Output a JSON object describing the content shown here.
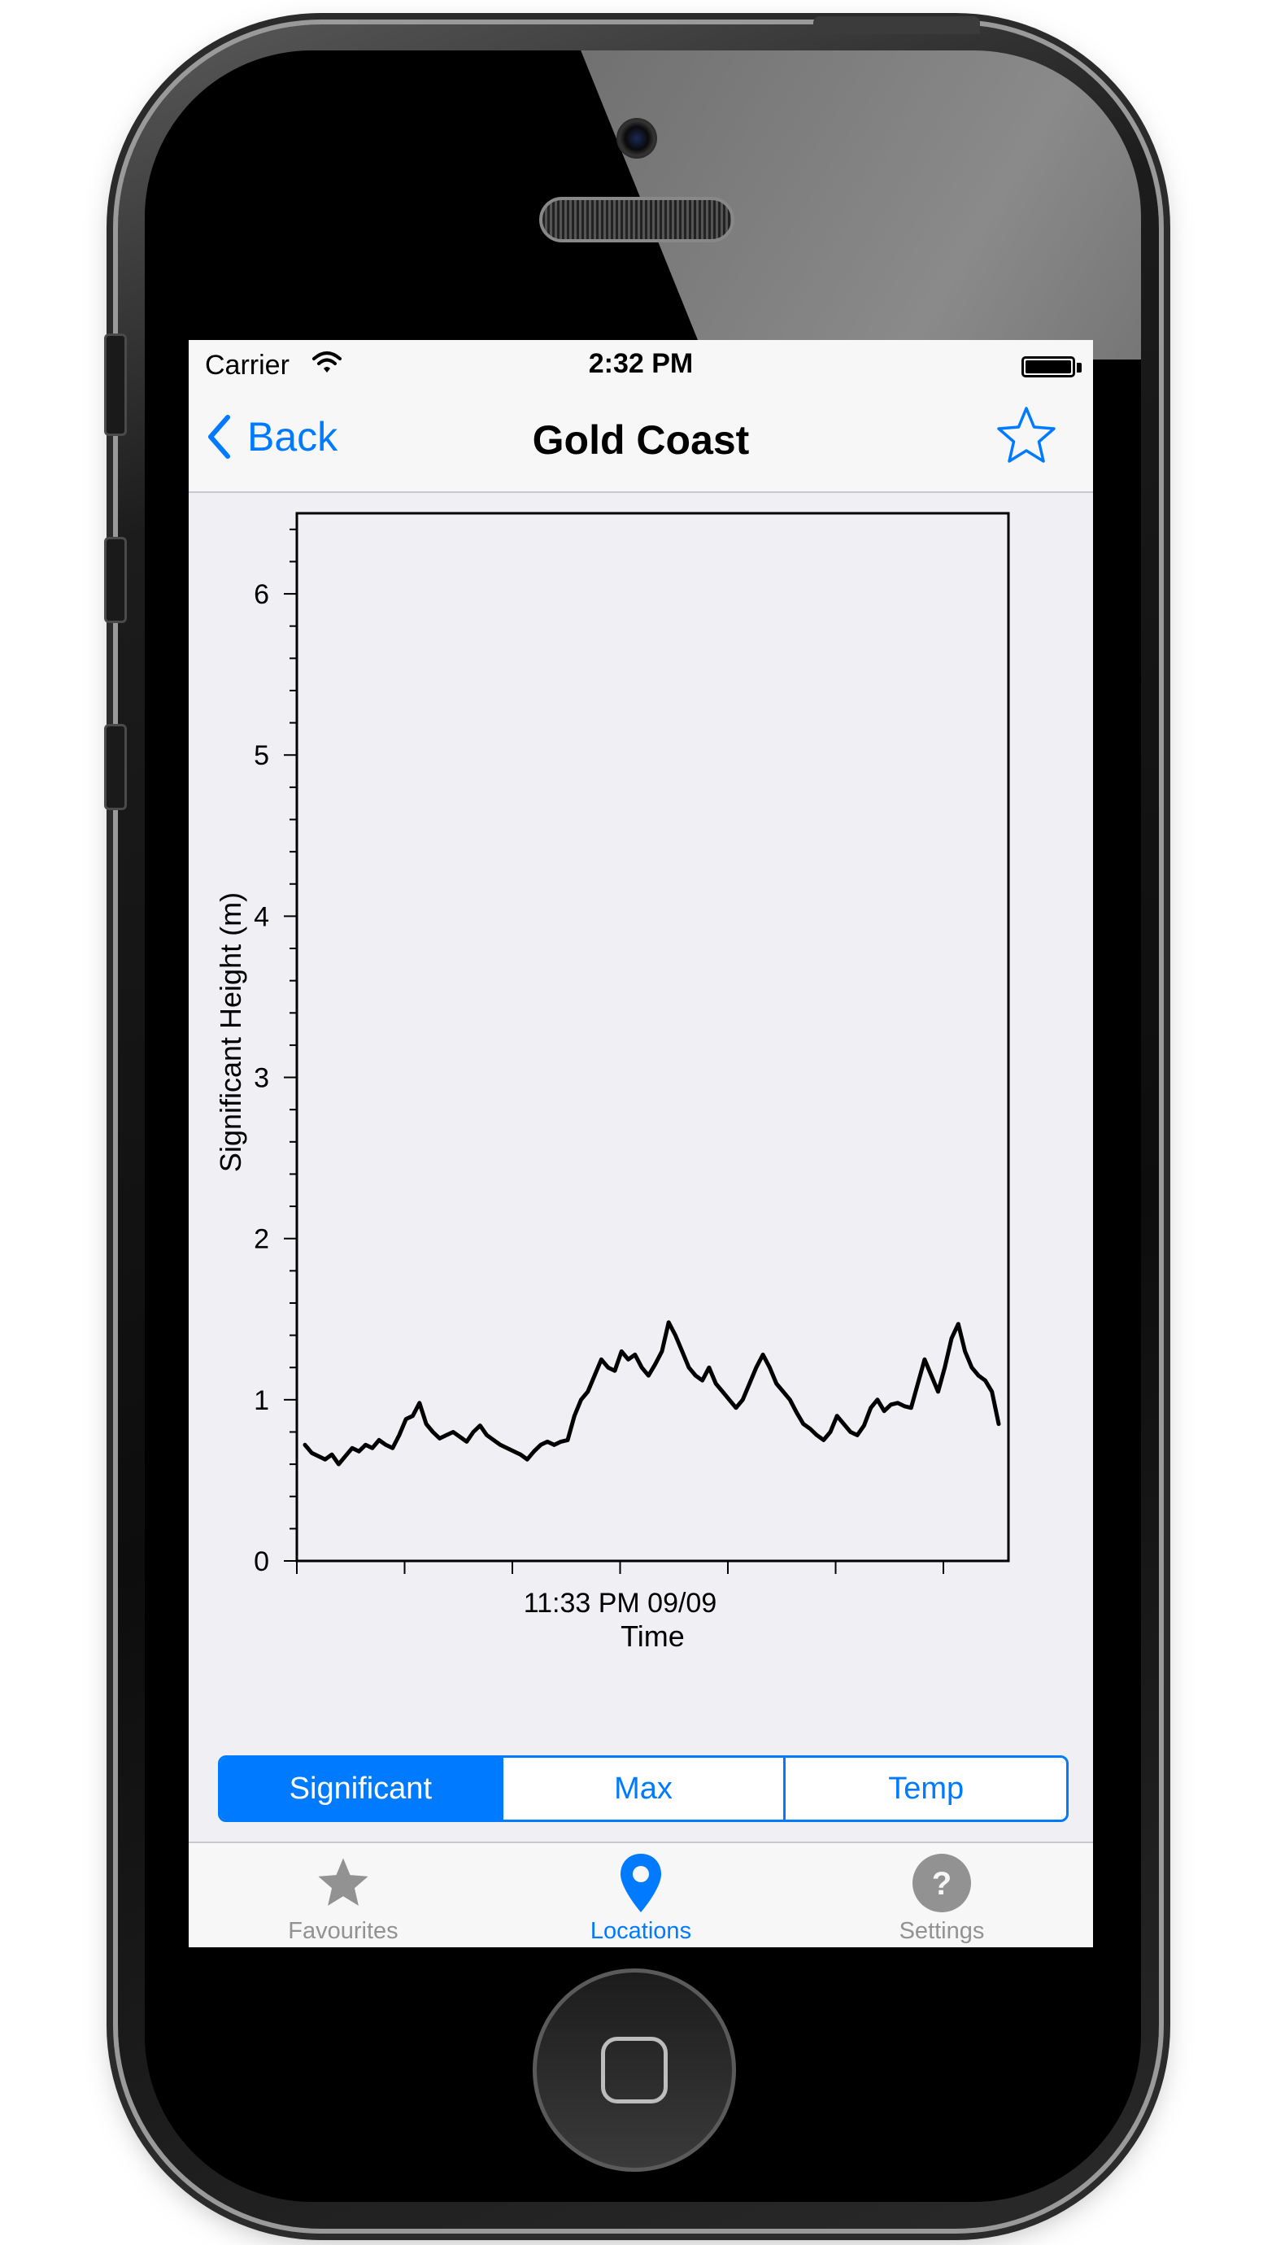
{
  "status_bar": {
    "carrier": "Carrier",
    "time": "2:32 PM"
  },
  "nav": {
    "back_label": "Back",
    "title": "Gold Coast",
    "favourite_icon": "star-outline-icon"
  },
  "chart_data": {
    "type": "line",
    "title": "",
    "xlabel": "Time",
    "ylabel": "Significant Height (m)",
    "x_tick_labels": [
      "11:33 PM 09/09"
    ],
    "ylim": [
      0,
      6.5
    ],
    "y_ticks": [
      0,
      1,
      2,
      3,
      4,
      5,
      6
    ],
    "grid": false,
    "series": [
      {
        "values": [
          0.72,
          0.67,
          0.65,
          0.63,
          0.66,
          0.6,
          0.65,
          0.7,
          0.68,
          0.72,
          0.7,
          0.75,
          0.72,
          0.7,
          0.78,
          0.88,
          0.9,
          0.98,
          0.85,
          0.8,
          0.76,
          0.78,
          0.8,
          0.77,
          0.74,
          0.8,
          0.84,
          0.78,
          0.75,
          0.72,
          0.7,
          0.68,
          0.66,
          0.63,
          0.68,
          0.72,
          0.74,
          0.72,
          0.74,
          0.75,
          0.9,
          1.0,
          1.05,
          1.15,
          1.25,
          1.2,
          1.18,
          1.3,
          1.25,
          1.28,
          1.2,
          1.15,
          1.22,
          1.3,
          1.48,
          1.4,
          1.3,
          1.2,
          1.15,
          1.12,
          1.2,
          1.1,
          1.05,
          1.0,
          0.95,
          1.0,
          1.1,
          1.2,
          1.28,
          1.2,
          1.1,
          1.05,
          1.0,
          0.92,
          0.85,
          0.82,
          0.78,
          0.75,
          0.8,
          0.9,
          0.85,
          0.8,
          0.78,
          0.84,
          0.95,
          1.0,
          0.93,
          0.97,
          0.98,
          0.96,
          0.95,
          1.1,
          1.25,
          1.15,
          1.05,
          1.2,
          1.38,
          1.47,
          1.3,
          1.2,
          1.15,
          1.12,
          1.05,
          0.85
        ]
      }
    ]
  },
  "segments": [
    {
      "label": "Significant",
      "selected": true
    },
    {
      "label": "Max",
      "selected": false
    },
    {
      "label": "Temp",
      "selected": false
    }
  ],
  "tabs": [
    {
      "label": "Favourites",
      "icon": "star-icon",
      "active": false
    },
    {
      "label": "Locations",
      "icon": "location-pin-icon",
      "active": true
    },
    {
      "label": "Settings",
      "icon": "question-circle-icon",
      "active": false
    }
  ],
  "colors": {
    "accent": "#007aff",
    "inactive": "#929292",
    "chart_line": "#000000",
    "chart_background": "#efeff4"
  }
}
